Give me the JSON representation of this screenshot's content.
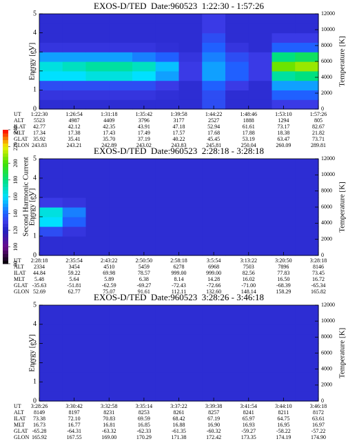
{
  "colorbar": {
    "label": "Second Harmonic Current",
    "lim": [
      80,
      240
    ],
    "ticks": [
      80,
      100,
      120,
      140,
      160,
      180,
      200,
      220,
      240
    ]
  },
  "chart_data": [
    {
      "type": "heatmap",
      "title": "EXOS-D/TED  Date:960523  1:22:30 - 1:57:26",
      "ylabel": "Energy [eV]",
      "y2label": "Temperature [K]",
      "ylim": [
        0,
        5
      ],
      "yticks": [
        0,
        1,
        2,
        3,
        4,
        5
      ],
      "y2lim": [
        0,
        12000
      ],
      "y2ticks": [
        0,
        2000,
        4000,
        6000,
        8000,
        10000,
        12000
      ],
      "z": [
        [
          125,
          125,
          125,
          125,
          125,
          125,
          125,
          135,
          125,
          125,
          130,
          130
        ],
        [
          128,
          128,
          128,
          128,
          128,
          126,
          125,
          135,
          125,
          125,
          140,
          140
        ],
        [
          135,
          135,
          135,
          135,
          135,
          130,
          125,
          140,
          130,
          125,
          150,
          150
        ],
        [
          160,
          160,
          165,
          165,
          160,
          150,
          130,
          150,
          140,
          130,
          175,
          180
        ],
        [
          165,
          170,
          175,
          175,
          170,
          155,
          130,
          150,
          140,
          130,
          205,
          210
        ],
        [
          150,
          150,
          150,
          150,
          145,
          140,
          128,
          145,
          135,
          130,
          180,
          185
        ],
        [
          128,
          128,
          128,
          128,
          128,
          126,
          125,
          140,
          128,
          125,
          140,
          140
        ],
        [
          125,
          125,
          125,
          125,
          125,
          125,
          125,
          135,
          125,
          125,
          130,
          130
        ],
        [
          125,
          125,
          125,
          125,
          125,
          125,
          125,
          130,
          125,
          125,
          125,
          125
        ],
        [
          125,
          125,
          125,
          125,
          125,
          125,
          125,
          130,
          125,
          125,
          125,
          125
        ]
      ],
      "table": {
        "row_labels": [
          "UT",
          "ALT",
          "ILAT",
          "MLT",
          "GLAT",
          "GLON"
        ],
        "rows": [
          [
            "1:22:30",
            "1:26:54",
            "1:31:18",
            "1:35:42",
            "1:39:58",
            "1:44:22",
            "1:48:46",
            "1:53:10",
            "1:57:26"
          ],
          [
            "5523",
            "4987",
            "4409",
            "3796",
            "3177",
            "2527",
            "1888",
            "1294",
            "805"
          ],
          [
            "42.77",
            "42.12",
            "42.35",
            "43.91",
            "47.18",
            "52.94",
            "61.61",
            "73.17",
            "82.67"
          ],
          [
            "17.34",
            "17.38",
            "17.43",
            "17.49",
            "17.57",
            "17.68",
            "17.88",
            "18.38",
            "21.82"
          ],
          [
            "35.92",
            "35.41",
            "35.70",
            "37.19",
            "40.22",
            "45.45",
            "53.19",
            "63.47",
            "73.71"
          ],
          [
            "243.83",
            "243.21",
            "242.89",
            "243.02",
            "243.83",
            "245.81",
            "250.04",
            "260.09",
            "289.81"
          ]
        ]
      }
    },
    {
      "type": "heatmap",
      "title": "EXOS-D/TED  Date:960523  2:28:18 - 3:28:18",
      "ylabel": "Energy [eV]",
      "y2label": "Temperature [K]",
      "ylim": [
        0,
        5
      ],
      "yticks": [
        0,
        1,
        2,
        3,
        4,
        5
      ],
      "y2lim": [
        0,
        12000
      ],
      "y2ticks": [
        0,
        2000,
        4000,
        6000,
        8000,
        10000,
        12000
      ],
      "z": [
        [
          125,
          125,
          125,
          125,
          125,
          125,
          125,
          125,
          125,
          125,
          125,
          125
        ],
        [
          125,
          125,
          125,
          125,
          125,
          125,
          125,
          125,
          125,
          125,
          125,
          125
        ],
        [
          135,
          128,
          125,
          125,
          125,
          125,
          125,
          125,
          125,
          125,
          125,
          125
        ],
        [
          160,
          140,
          125,
          125,
          125,
          125,
          125,
          125,
          125,
          125,
          125,
          125
        ],
        [
          165,
          145,
          125,
          125,
          125,
          125,
          125,
          125,
          125,
          125,
          125,
          125
        ],
        [
          130,
          128,
          125,
          125,
          125,
          125,
          125,
          125,
          125,
          125,
          125,
          125
        ],
        [
          125,
          125,
          125,
          125,
          125,
          125,
          125,
          125,
          125,
          125,
          125,
          125
        ],
        [
          125,
          125,
          125,
          125,
          125,
          125,
          125,
          125,
          125,
          125,
          125,
          125
        ],
        [
          125,
          125,
          125,
          125,
          125,
          125,
          125,
          125,
          125,
          125,
          125,
          125
        ],
        [
          125,
          125,
          125,
          125,
          125,
          125,
          125,
          125,
          125,
          125,
          125,
          125
        ]
      ],
      "table": {
        "row_labels": [
          "UT",
          "ALT",
          "ILAT",
          "MLT",
          "GLAT",
          "GLON"
        ],
        "rows": [
          [
            "2:28:18",
            "2:35:54",
            "2:43:22",
            "2:50:50",
            "2:58:18",
            "3:5:54",
            "3:13:22",
            "3:20:50",
            "3:28:18"
          ],
          [
            "2334",
            "3454",
            "4510",
            "5459",
            "6278",
            "6968",
            "7503",
            "7896",
            "8146"
          ],
          [
            "44.84",
            "59.22",
            "69.98",
            "78.57",
            "999.00",
            "999.00",
            "82.56",
            "77.83",
            "73.45"
          ],
          [
            "5.48",
            "5.64",
            "5.89",
            "6.38",
            "8.14",
            "14.28",
            "16.02",
            "16.50",
            "16.72"
          ],
          [
            "-35.63",
            "-51.81",
            "-62.59",
            "-69.27",
            "-72.43",
            "-72.66",
            "-71.00",
            "-68.39",
            "-65.34"
          ],
          [
            "52.69",
            "62.77",
            "75.07",
            "91.61",
            "112.11",
            "132.60",
            "148.14",
            "158.29",
            "165.82"
          ]
        ]
      }
    },
    {
      "type": "heatmap",
      "title": "EXOS-D/TED  Date:960523  3:28:26 - 3:46:18",
      "ylabel": "Energy [eV]",
      "y2label": "Temperature [K]",
      "ylim": [
        0,
        5
      ],
      "yticks": [
        0,
        1,
        2,
        3,
        4,
        5
      ],
      "y2lim": [
        0,
        12000
      ],
      "y2ticks": [
        0,
        2000,
        4000,
        6000,
        8000,
        10000,
        12000
      ],
      "z": [
        [
          125,
          125,
          125,
          125,
          125,
          125,
          125,
          125,
          125,
          125,
          125,
          125
        ],
        [
          125,
          125,
          125,
          125,
          125,
          125,
          125,
          125,
          125,
          125,
          125,
          125
        ],
        [
          125,
          125,
          125,
          125,
          125,
          125,
          125,
          125,
          125,
          125,
          125,
          125
        ],
        [
          125,
          125,
          125,
          125,
          125,
          125,
          125,
          125,
          125,
          125,
          125,
          125
        ],
        [
          125,
          125,
          125,
          125,
          125,
          125,
          125,
          125,
          125,
          125,
          125,
          125
        ],
        [
          125,
          125,
          125,
          125,
          125,
          125,
          125,
          125,
          125,
          125,
          125,
          125
        ],
        [
          125,
          125,
          125,
          125,
          125,
          125,
          125,
          125,
          125,
          125,
          125,
          125
        ],
        [
          125,
          125,
          125,
          125,
          125,
          125,
          125,
          125,
          125,
          125,
          125,
          125
        ],
        [
          125,
          125,
          125,
          125,
          125,
          125,
          125,
          125,
          125,
          125,
          125,
          125
        ],
        [
          125,
          125,
          125,
          125,
          125,
          125,
          125,
          125,
          125,
          125,
          125,
          125
        ]
      ],
      "table": {
        "row_labels": [
          "UT",
          "ALT",
          "ILAT",
          "MLT",
          "GLAT",
          "GLON"
        ],
        "rows": [
          [
            "3:28:26",
            "3:30:42",
            "3:32:58",
            "3:35:14",
            "3:37:22",
            "3:39:38",
            "3:41:54",
            "3:44:10",
            "3:46:18"
          ],
          [
            "8149",
            "8197",
            "8231",
            "8253",
            "8261",
            "8257",
            "8241",
            "8211",
            "8172"
          ],
          [
            "73.38",
            "72.10",
            "70.83",
            "69.59",
            "68.42",
            "67.19",
            "65.97",
            "64.75",
            "63.61"
          ],
          [
            "16.73",
            "16.77",
            "16.81",
            "16.85",
            "16.88",
            "16.90",
            "16.93",
            "16.95",
            "16.97"
          ],
          [
            "-65.28",
            "-64.31",
            "-63.32",
            "-62.33",
            "-61.35",
            "-60.32",
            "-59.27",
            "-58.22",
            "-57.22"
          ],
          [
            "165.92",
            "167.55",
            "169.00",
            "170.29",
            "171.38",
            "172.42",
            "173.35",
            "174.19",
            "174.90"
          ]
        ]
      }
    }
  ]
}
